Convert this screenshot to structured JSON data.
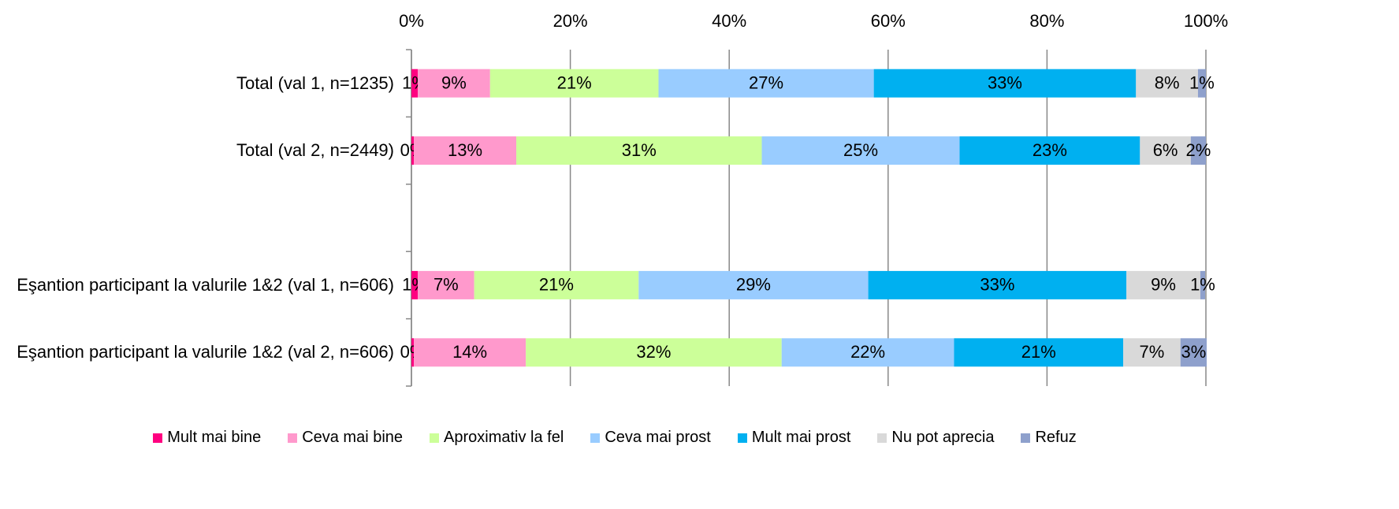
{
  "chart_data": {
    "type": "stacked_bar_horizontal",
    "categories": [
      "Total (val 1, n=1235)",
      "Total (val 2, n=2449)",
      null,
      "Eşantion participant la valurile 1&2 (val 1, n=606)",
      "Eşantion participant la valurile 1&2 (val 2, n=606)"
    ],
    "xlim": [
      0,
      100
    ],
    "xticks": [
      {
        "value": 0,
        "label": "0%"
      },
      {
        "value": 20,
        "label": "20%"
      },
      {
        "value": 40,
        "label": "40%"
      },
      {
        "value": 60,
        "label": "60%"
      },
      {
        "value": 80,
        "label": "80%"
      },
      {
        "value": 100,
        "label": "100%"
      }
    ],
    "grid": true,
    "legend": "bottom",
    "series": [
      {
        "name": "Mult mai bine",
        "color": "#ff0080",
        "values": [
          0.8,
          0.3,
          null,
          0.8,
          0.3
        ],
        "value_labels": [
          "1%",
          "0%",
          null,
          "1%",
          "0%"
        ]
      },
      {
        "name": "Ceva mai bine",
        "color": "#ff99cc",
        "values": [
          9.1,
          12.9,
          null,
          7.1,
          14.1
        ],
        "value_labels": [
          "9%",
          "13%",
          null,
          "7%",
          "14%"
        ]
      },
      {
        "name": "Aproximativ la fel",
        "color": "#ccff99",
        "values": [
          21.2,
          30.9,
          null,
          20.7,
          32.2
        ],
        "value_labels": [
          "21%",
          "31%",
          null,
          "21%",
          "32%"
        ]
      },
      {
        "name": "Ceva mai prost",
        "color": "#99ccff",
        "values": [
          27.1,
          24.9,
          null,
          28.9,
          21.7
        ],
        "value_labels": [
          "27%",
          "25%",
          null,
          "29%",
          "22%"
        ]
      },
      {
        "name": "Mult mai prost",
        "color": "#00b0f0",
        "values": [
          33,
          22.7,
          null,
          32.5,
          21.3
        ],
        "value_labels": [
          "33%",
          "23%",
          null,
          "33%",
          "21%"
        ]
      },
      {
        "name": "Nu pot aprecia",
        "color": "#d9d9d9",
        "values": [
          7.8,
          6.4,
          null,
          9.3,
          7.2
        ],
        "value_labels": [
          "8%",
          "6%",
          null,
          "9%",
          "7%"
        ]
      },
      {
        "name": "Refuz",
        "color": "#8ea0cc",
        "values": [
          1,
          1.9,
          null,
          0.6,
          3.3
        ],
        "value_labels": [
          "1%",
          "2%",
          null,
          "1%",
          "3%"
        ]
      }
    ]
  }
}
